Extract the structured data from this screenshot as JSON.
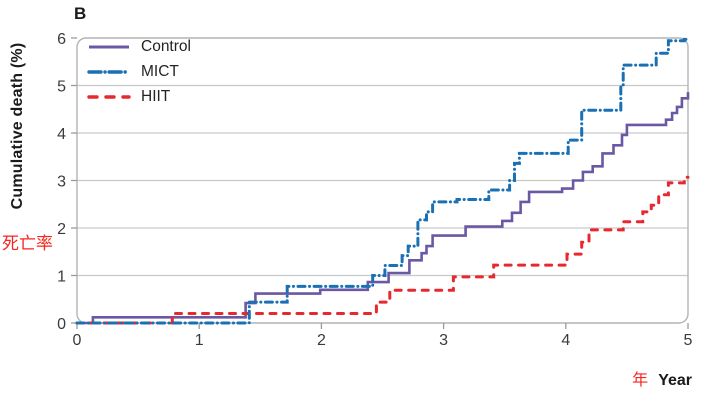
{
  "panel_label": "B",
  "labels": {
    "y_title": "Cumulative death (%)",
    "y_annotation_cn": "死亡率",
    "x_annotation_cn": "年",
    "x_title": "Year"
  },
  "colors": {
    "control": "#6a58a4",
    "mict": "#1a70b4",
    "hiit": "#e7282e",
    "annotation_red": "#f5261f",
    "grid": "#c9c9c9",
    "frame": "#b4b4b4",
    "tick": "#9a9a9a",
    "tick_text": "#3b3b3b"
  },
  "chart_data": {
    "type": "line",
    "subtype": "step",
    "title": "",
    "xlabel": "Year",
    "ylabel": "Cumulative death (%)",
    "xlim": [
      0,
      5
    ],
    "ylim": [
      0,
      6
    ],
    "x_ticks": [
      0,
      1,
      2,
      3,
      4,
      5
    ],
    "y_ticks": [
      0,
      1,
      2,
      3,
      4,
      5,
      6
    ],
    "grid": "horizontal-only",
    "legend_position": "top-left-inside",
    "series": [
      {
        "name": "Control",
        "color": "#6a58a4",
        "style": "solid",
        "points": [
          [
            0,
            0
          ],
          [
            0.13,
            0.12
          ],
          [
            1.38,
            0.42
          ],
          [
            1.46,
            0.62
          ],
          [
            1.99,
            0.7
          ],
          [
            2.38,
            0.86
          ],
          [
            2.55,
            1.05
          ],
          [
            2.72,
            1.32
          ],
          [
            2.82,
            1.47
          ],
          [
            2.86,
            1.62
          ],
          [
            2.91,
            1.84
          ],
          [
            3.18,
            2.03
          ],
          [
            3.48,
            2.15
          ],
          [
            3.56,
            2.32
          ],
          [
            3.63,
            2.55
          ],
          [
            3.7,
            2.76
          ],
          [
            3.97,
            2.83
          ],
          [
            4.06,
            3.0
          ],
          [
            4.14,
            3.18
          ],
          [
            4.22,
            3.3
          ],
          [
            4.3,
            3.57
          ],
          [
            4.39,
            3.74
          ],
          [
            4.46,
            3.96
          ],
          [
            4.5,
            4.17
          ],
          [
            4.82,
            4.28
          ],
          [
            4.87,
            4.42
          ],
          [
            4.91,
            4.55
          ],
          [
            4.95,
            4.73
          ],
          [
            5.0,
            4.86
          ]
        ]
      },
      {
        "name": "MICT",
        "color": "#1a70b4",
        "style": "dash-dot",
        "points": [
          [
            0,
            0
          ],
          [
            1.41,
            0.44
          ],
          [
            1.72,
            0.77
          ],
          [
            2.42,
            1.0
          ],
          [
            2.52,
            1.21
          ],
          [
            2.66,
            1.42
          ],
          [
            2.71,
            1.62
          ],
          [
            2.79,
            2.17
          ],
          [
            2.86,
            2.34
          ],
          [
            2.91,
            2.55
          ],
          [
            3.11,
            2.6
          ],
          [
            3.37,
            2.8
          ],
          [
            3.54,
            3.0
          ],
          [
            3.58,
            3.36
          ],
          [
            3.62,
            3.57
          ],
          [
            4.02,
            3.85
          ],
          [
            4.13,
            4.48
          ],
          [
            4.45,
            5.0
          ],
          [
            4.47,
            5.43
          ],
          [
            4.74,
            5.68
          ],
          [
            4.84,
            5.94
          ],
          [
            4.97,
            5.97
          ]
        ]
      },
      {
        "name": "HIIT",
        "color": "#e7282e",
        "style": "dashed",
        "points": [
          [
            0,
            0
          ],
          [
            0.78,
            0.2
          ],
          [
            2.45,
            0.44
          ],
          [
            2.56,
            0.69
          ],
          [
            3.08,
            0.97
          ],
          [
            3.41,
            1.22
          ],
          [
            4.01,
            1.45
          ],
          [
            4.13,
            1.7
          ],
          [
            4.19,
            1.96
          ],
          [
            4.47,
            2.13
          ],
          [
            4.63,
            2.34
          ],
          [
            4.7,
            2.48
          ],
          [
            4.76,
            2.7
          ],
          [
            4.84,
            2.95
          ],
          [
            4.97,
            3.07
          ]
        ]
      }
    ]
  }
}
